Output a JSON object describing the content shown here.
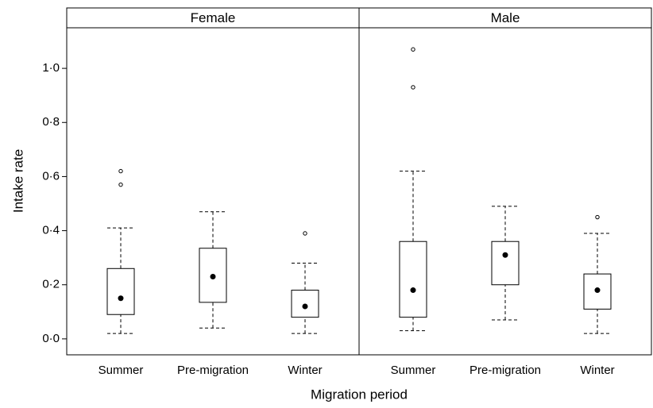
{
  "chart_data": {
    "type": "box",
    "ylabel": "Intake rate",
    "xlabel": "Migration period",
    "ylim": [
      -0.059,
      1.15
    ],
    "yticks": [
      {
        "value": 0,
        "label": "0·0"
      },
      {
        "value": 0.2,
        "label": "0·2"
      },
      {
        "value": 0.4,
        "label": "0·4"
      },
      {
        "value": 0.6,
        "label": "0·6"
      },
      {
        "value": 0.8,
        "label": "0·8"
      },
      {
        "value": 1.0,
        "label": "1·0"
      }
    ],
    "panels": [
      {
        "title": "Female",
        "categories": [
          "Summer",
          "Pre-migration",
          "Winter"
        ],
        "boxes": [
          {
            "low": 0.02,
            "q1": 0.09,
            "median": 0.15,
            "q3": 0.26,
            "high": 0.41,
            "outliers": [
              0.57,
              0.62
            ]
          },
          {
            "low": 0.04,
            "q1": 0.135,
            "median": 0.23,
            "q3": 0.335,
            "high": 0.47,
            "outliers": []
          },
          {
            "low": 0.02,
            "q1": 0.08,
            "median": 0.12,
            "q3": 0.18,
            "high": 0.28,
            "outliers": [
              0.39
            ]
          }
        ]
      },
      {
        "title": "Male",
        "categories": [
          "Summer",
          "Pre-migration",
          "Winter"
        ],
        "boxes": [
          {
            "low": 0.03,
            "q1": 0.08,
            "median": 0.18,
            "q3": 0.36,
            "high": 0.62,
            "outliers": [
              0.93,
              1.07
            ]
          },
          {
            "low": 0.07,
            "q1": 0.2,
            "median": 0.31,
            "q3": 0.36,
            "high": 0.49,
            "outliers": []
          },
          {
            "low": 0.02,
            "q1": 0.11,
            "median": 0.18,
            "q3": 0.24,
            "high": 0.39,
            "outliers": [
              0.45
            ]
          }
        ]
      }
    ]
  }
}
